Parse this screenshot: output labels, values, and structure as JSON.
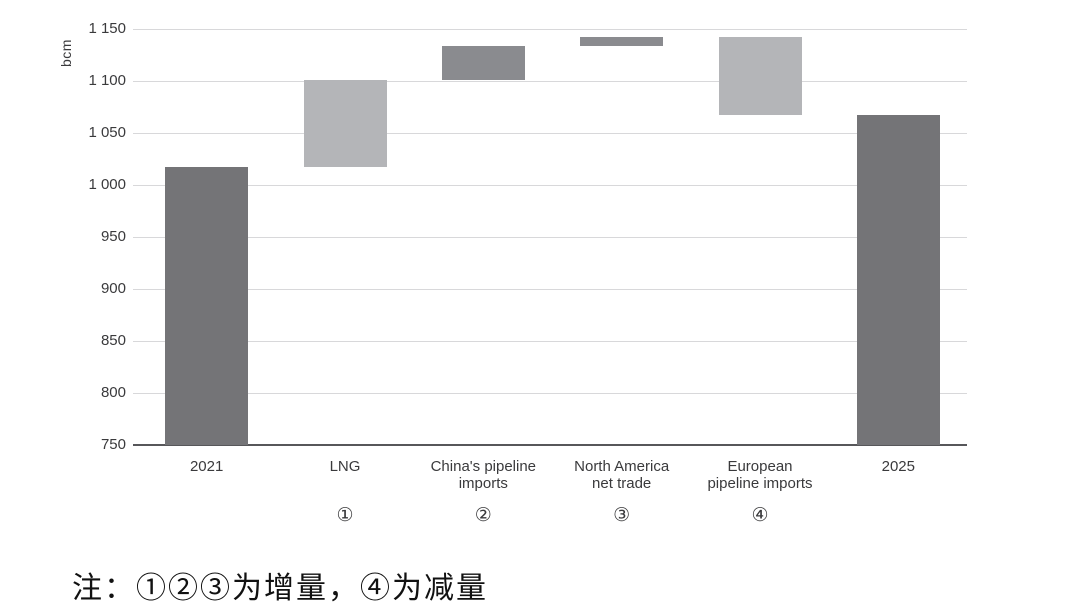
{
  "note": {
    "text": "注：①②③为增量，④为减量"
  },
  "colors": {
    "bar_total": "#747477",
    "bar_light": "#b4b5b8",
    "bar_medium": "#8a8b8f",
    "gridline": "#d8d8da",
    "axis_line": "#57575a",
    "text": "#3a3a3c",
    "background": "#ffffff"
  },
  "chart_data": {
    "type": "bar",
    "subtype": "waterfall",
    "title": "",
    "xlabel": "",
    "ylabel": "bcm",
    "ylim": [
      750,
      1150
    ],
    "ytick_step": 50,
    "grid": true,
    "legend": false,
    "yticks": [
      {
        "value": 750,
        "label": "750"
      },
      {
        "value": 800,
        "label": "800"
      },
      {
        "value": 850,
        "label": "850"
      },
      {
        "value": 900,
        "label": "900"
      },
      {
        "value": 950,
        "label": "950"
      },
      {
        "value": 1000,
        "label": "1 000"
      },
      {
        "value": 1050,
        "label": "1 050"
      },
      {
        "value": 1100,
        "label": "1 100"
      },
      {
        "value": 1150,
        "label": "1 150"
      }
    ],
    "categories": [
      "2021",
      "LNG",
      "China's pipeline imports",
      "North America net trade",
      "European pipeline imports",
      "2025"
    ],
    "bars": [
      {
        "id": "bar-2021",
        "label_lines": [
          "2021"
        ],
        "marker": "",
        "role": "total",
        "from": 750,
        "to": 1017,
        "color": "#747477"
      },
      {
        "id": "bar-lng",
        "label_lines": [
          "LNG"
        ],
        "marker": "①",
        "role": "increase",
        "from": 1017,
        "to": 1101,
        "color": "#b4b5b8"
      },
      {
        "id": "bar-china-pipeline-imports",
        "label_lines": [
          "China's pipeline",
          "imports"
        ],
        "marker": "②",
        "role": "increase",
        "from": 1101,
        "to": 1134,
        "color": "#8a8b8f"
      },
      {
        "id": "bar-north-america-net-trade",
        "label_lines": [
          "North America",
          "net trade"
        ],
        "marker": "③",
        "role": "increase",
        "from": 1134,
        "to": 1142,
        "color": "#8a8b8f"
      },
      {
        "id": "bar-european-pipeline-imports",
        "label_lines": [
          "European",
          "pipeline imports"
        ],
        "marker": "④",
        "role": "decrease",
        "from": 1142,
        "to": 1067,
        "color": "#b4b5b8"
      },
      {
        "id": "bar-2025",
        "label_lines": [
          "2025"
        ],
        "marker": "",
        "role": "total",
        "from": 750,
        "to": 1067,
        "color": "#747477"
      }
    ]
  }
}
